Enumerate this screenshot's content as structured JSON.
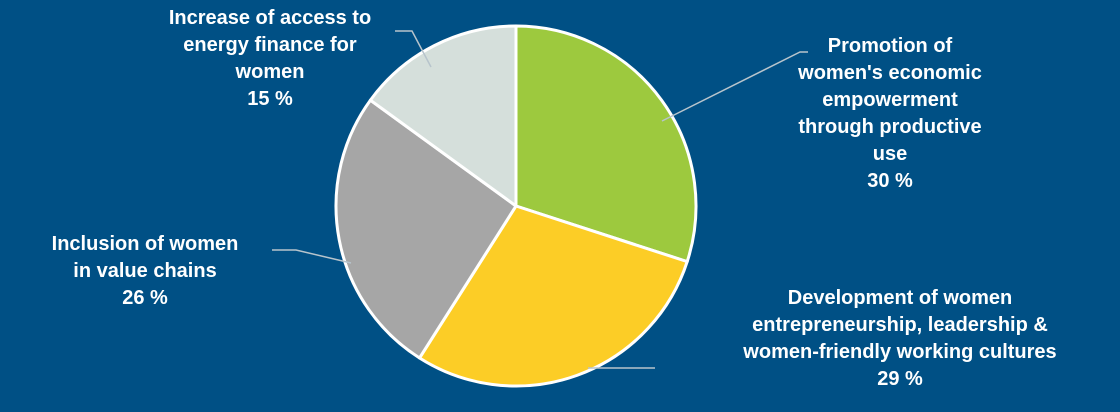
{
  "chart_data": {
    "type": "pie",
    "slices": [
      {
        "name": "Promotion of women's economic empowerment through productive use",
        "value": 30,
        "label_lines": [
          "Promotion of",
          "women's economic",
          "empowerment",
          "through productive",
          "use"
        ],
        "pct_label": "30 %",
        "color": "#9dc93e"
      },
      {
        "name": "Development of women entrepreneurship, leadership & women-friendly working cultures",
        "value": 29,
        "label_lines": [
          "Development of women",
          "entrepreneurship, leadership &",
          "women-friendly working cultures"
        ],
        "pct_label": "29 %",
        "color": "#fccd26"
      },
      {
        "name": "Inclusion of women in value chains",
        "value": 26,
        "label_lines": [
          "Inclusion of women",
          "in value chains"
        ],
        "pct_label": "26 %",
        "color": "#a6a6a6"
      },
      {
        "name": "Increase of access to energy finance for women",
        "value": 15,
        "label_lines": [
          "Increase of access to",
          "energy finance for",
          "women"
        ],
        "pct_label": "15 %",
        "color": "#d5dfdb"
      }
    ]
  }
}
